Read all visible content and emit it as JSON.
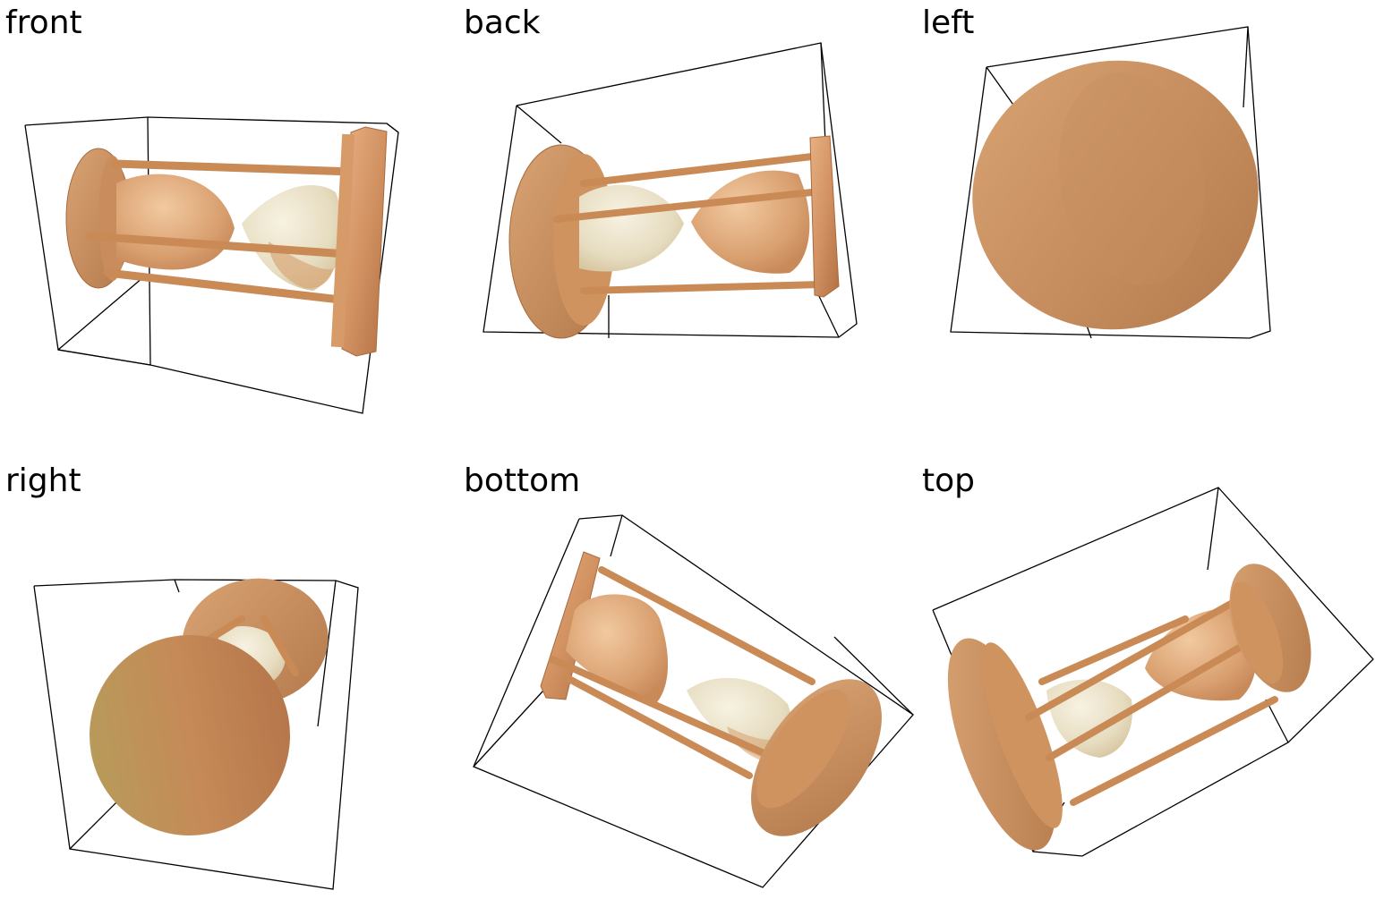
{
  "views": {
    "front": {
      "label": "front"
    },
    "back": {
      "label": "back"
    },
    "left": {
      "label": "left"
    },
    "right": {
      "label": "right"
    },
    "bottom": {
      "label": "bottom"
    },
    "top": {
      "label": "top"
    }
  },
  "colors": {
    "wood_light": "#e3a878",
    "wood_mid": "#cf8f5c",
    "wood_dark": "#b57245",
    "glass_cream": "#efe6cf",
    "glass_sand": "#d9a777",
    "bbox_line": "#000000",
    "background": "#ffffff"
  }
}
